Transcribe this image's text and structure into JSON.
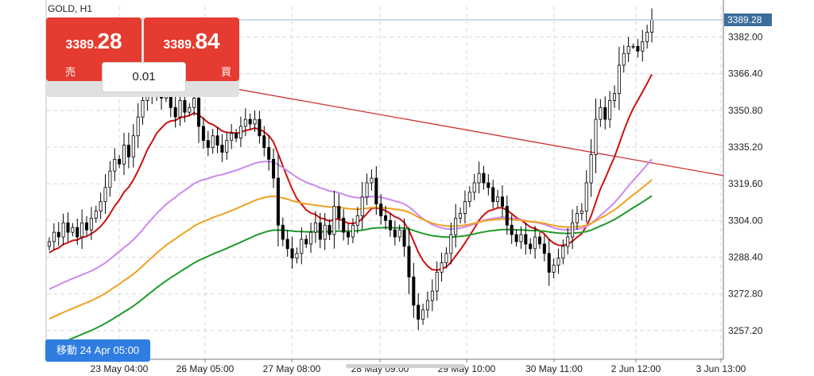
{
  "header": {
    "symbol": "GOLD, H1"
  },
  "trade_panel": {
    "sell": {
      "price_small": "3389.",
      "price_big": "28",
      "label": "売"
    },
    "buy": {
      "price_small": "3389.",
      "price_big": "84",
      "label": "買"
    },
    "lot": "0.01"
  },
  "navigator": {
    "label": "移動 24 Apr 05:00"
  },
  "colors": {
    "background": "#ffffff",
    "grid": "#d9d9d9",
    "candle": "#000000",
    "sma_fast": "#cc1111",
    "sma_violet": "#cc88ee",
    "sma_orange": "#f0a020",
    "sma_green": "#1f9a2a",
    "trendline": "#cc3333",
    "price_tag": "#3a6d9a",
    "trade_button": "#e53b30",
    "navigator": "#2f7de1"
  },
  "chart_data": {
    "type": "candlestick",
    "ylim": [
      3245,
      3395
    ],
    "y_ticks": [
      "3382.00",
      "3366.40",
      "3350.80",
      "3335.20",
      "3319.60",
      "3304.00",
      "3288.40",
      "3272.80",
      "3257.20"
    ],
    "x_ticks": [
      "23 May 04:00",
      "26 May 05:00",
      "27 May 08:00",
      "28 May 09:00",
      "29 May 10:00",
      "30 May 11:00",
      "2 Jun 12:00",
      "3 Jun 13:00"
    ],
    "current_price": "3389.28",
    "closes": [
      3295,
      3299,
      3297,
      3303,
      3299,
      3301,
      3297,
      3303,
      3300,
      3305,
      3308,
      3312,
      3318,
      3325,
      3330,
      3328,
      3336,
      3331,
      3340,
      3348,
      3355,
      3362,
      3358,
      3363,
      3356,
      3358,
      3352,
      3348,
      3355,
      3350,
      3352,
      3356,
      3344,
      3338,
      3335,
      3340,
      3336,
      3333,
      3338,
      3341,
      3339,
      3344,
      3347,
      3345,
      3347,
      3340,
      3335,
      3330,
      3322,
      3302,
      3296,
      3292,
      3288,
      3290,
      3296,
      3294,
      3299,
      3303,
      3296,
      3302,
      3298,
      3310,
      3305,
      3299,
      3297,
      3302,
      3306,
      3314,
      3320,
      3322,
      3311,
      3306,
      3304,
      3300,
      3297,
      3300,
      3293,
      3280,
      3268,
      3262,
      3266,
      3270,
      3274,
      3282,
      3286,
      3290,
      3298,
      3305,
      3307,
      3312,
      3316,
      3320,
      3324,
      3320,
      3318,
      3312,
      3314,
      3310,
      3302,
      3298,
      3295,
      3298,
      3294,
      3292,
      3297,
      3294,
      3290,
      3282,
      3285,
      3288,
      3293,
      3297,
      3303,
      3307,
      3308,
      3320,
      3332,
      3347,
      3352,
      3347,
      3355,
      3358,
      3370,
      3375,
      3378,
      3378,
      3376,
      3380,
      3384,
      3389.28
    ],
    "series": [
      {
        "period": 13,
        "color": "#cc1111"
      },
      {
        "period": 50,
        "color": "#cc88ee"
      },
      {
        "period": 80,
        "color": "#f0a020"
      },
      {
        "period": 110,
        "color": "#1f9a2a"
      }
    ],
    "trendline": {
      "from": [
        0,
        3374
      ],
      "to": [
        136,
        3326
      ]
    },
    "grid": true
  }
}
